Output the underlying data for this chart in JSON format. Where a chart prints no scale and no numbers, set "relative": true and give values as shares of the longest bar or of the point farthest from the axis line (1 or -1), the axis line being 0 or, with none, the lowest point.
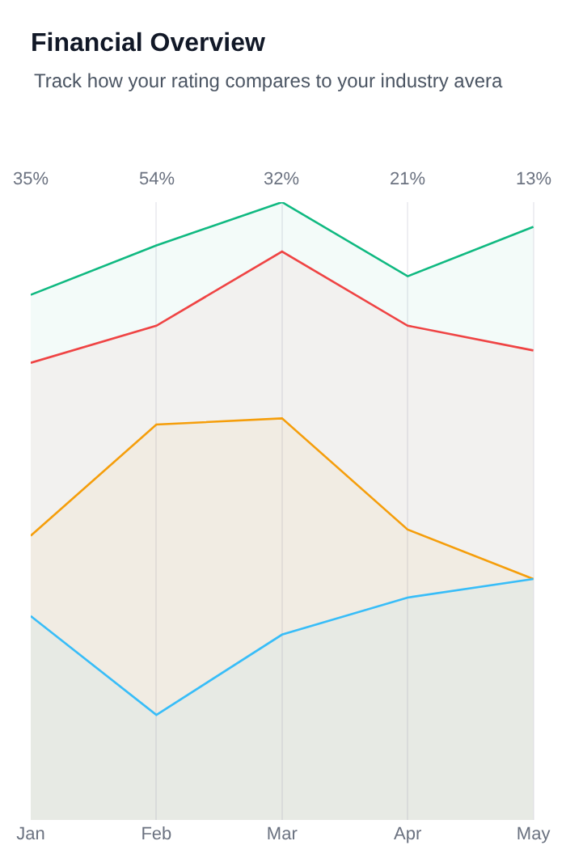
{
  "chart_data": {
    "type": "area",
    "title": "Financial Overview",
    "subtitle": "Track how your rating compares to your industry avera",
    "categories": [
      "Jan",
      "Feb",
      "Mar",
      "Apr",
      "May"
    ],
    "relative": true,
    "series": [
      {
        "color": "#10b981",
        "values": [
          0.85,
          0.93,
          1,
          0.88,
          0.96
        ]
      },
      {
        "color": "#ef4444",
        "values": [
          0.74,
          0.8,
          0.92,
          0.8,
          0.76
        ]
      },
      {
        "color": "#f59e0b",
        "values": [
          0.46,
          0.64,
          0.65,
          0.47,
          0.39
        ]
      },
      {
        "color": "#38bdf8",
        "values": [
          0.33,
          0.17,
          0.3,
          0.36,
          0.39
        ]
      }
    ],
    "annotations": [
      "35%",
      "54%",
      "32%",
      "21%",
      "13%"
    ],
    "grid": "x",
    "marker": "none",
    "line_style": "solid"
  }
}
